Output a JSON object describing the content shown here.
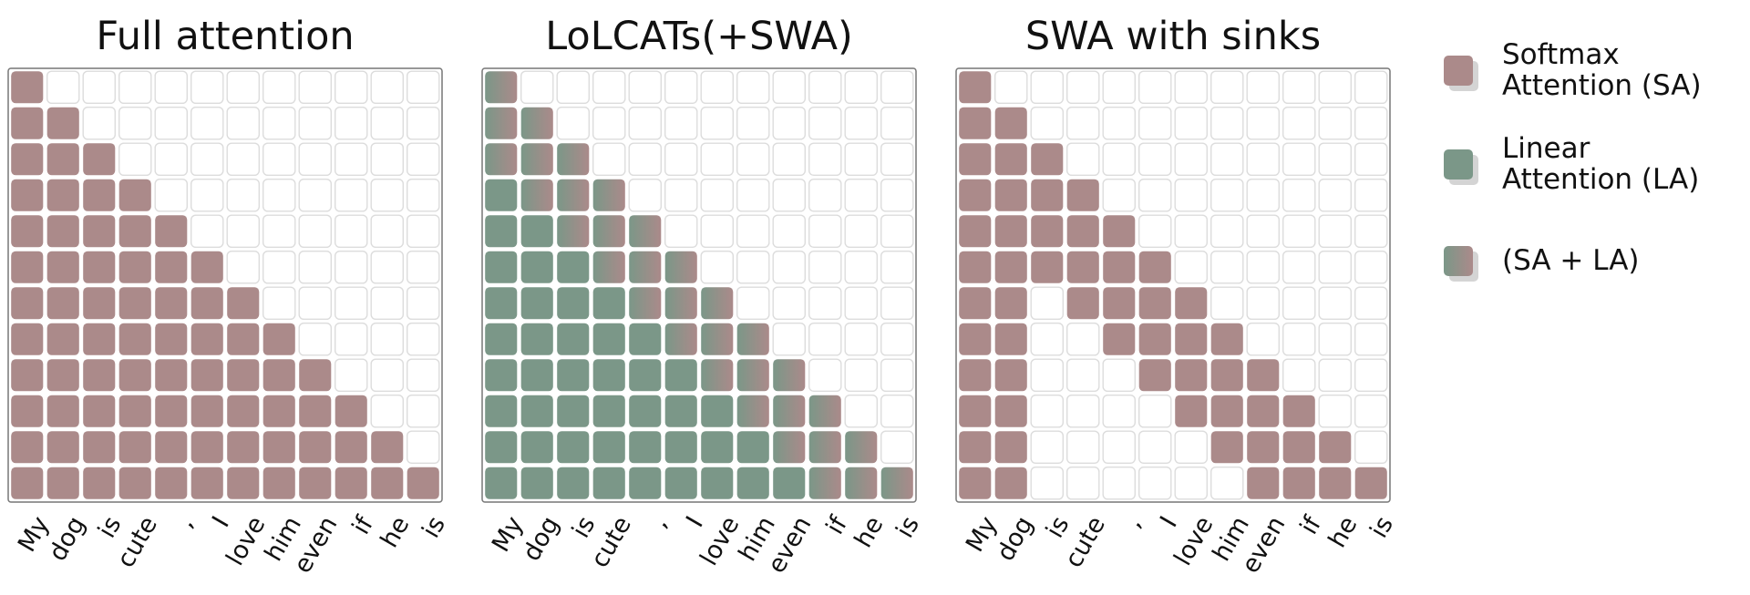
{
  "tokens": [
    "My",
    "dog",
    "is",
    "cute",
    ",",
    "I",
    "love",
    "him",
    "even",
    "if",
    "he",
    "is"
  ],
  "colors": {
    "softmax": "#ab8a8a",
    "linear": "#7b9788",
    "empty_fill": "#ffffff",
    "empty_stroke": "#dcdcdc",
    "border": "#777777",
    "shadow": "#d4d4d4"
  },
  "panels": [
    {
      "title": "Full attention",
      "mode": "full"
    },
    {
      "title": "LoLCATs(+SWA)",
      "mode": "lolcats",
      "window": 4
    },
    {
      "title": "SWA with sinks",
      "mode": "sinks",
      "sinks": 2,
      "window": 4
    }
  ],
  "legend": [
    {
      "label_line1": "Softmax",
      "label_line2": "Attention (SA)",
      "kind": "softmax"
    },
    {
      "label_line1": "Linear",
      "label_line2": "Attention (LA)",
      "kind": "linear"
    },
    {
      "label_line1": "(SA + LA)",
      "label_line2": "",
      "kind": "mixed"
    }
  ]
}
